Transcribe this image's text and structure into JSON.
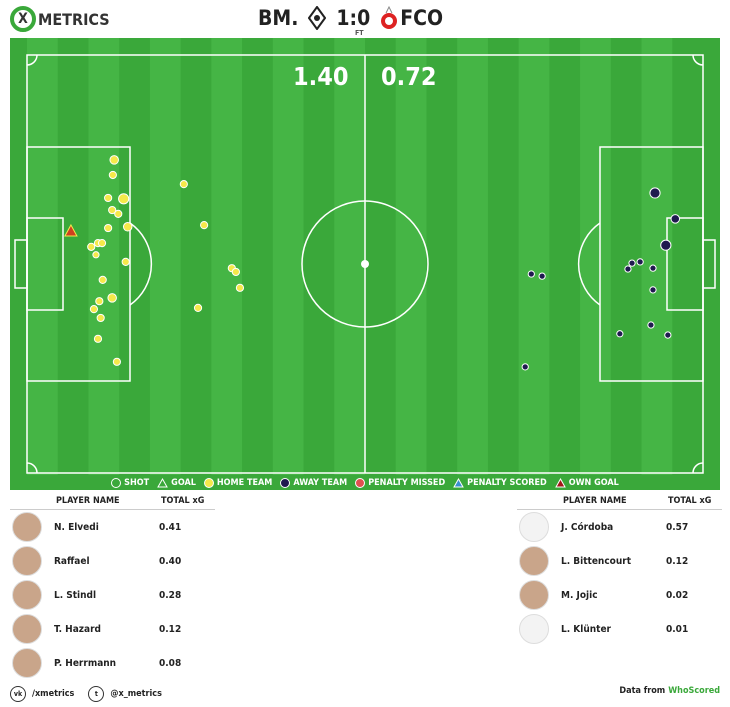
{
  "header": {
    "brand": "METRICS",
    "brand_x": "X",
    "home": "BM.",
    "away": "FCO",
    "score": "1:0",
    "status": "FT"
  },
  "xg": {
    "home": "1.40",
    "away": "0.72"
  },
  "colors": {
    "pitch": "#3aa83a",
    "pitch_stripe": "#45b545",
    "home": "#f5e94a",
    "away": "#1f1a4f",
    "own_goal": "#d04020",
    "brand": "#3aa83a"
  },
  "chart_data": {
    "type": "scatter",
    "xlim": [
      0,
      100
    ],
    "ylim": [
      0,
      100
    ],
    "home_shots": [
      [
        12.9,
        25.1,
        0.08
      ],
      [
        12.7,
        28.7,
        0.04
      ],
      [
        12.0,
        34.2,
        0.04
      ],
      [
        14.3,
        34.4,
        0.15
      ],
      [
        12.6,
        37.1,
        0.04
      ],
      [
        13.5,
        38.0,
        0.04
      ],
      [
        14.9,
        41.1,
        0.08
      ],
      [
        12.0,
        41.4,
        0.04
      ],
      [
        10.5,
        45.0,
        0.04
      ],
      [
        9.5,
        45.9,
        0.04
      ],
      [
        11.1,
        45.0,
        0.04
      ],
      [
        10.2,
        47.8,
        0.02
      ],
      [
        14.6,
        49.5,
        0.04
      ],
      [
        11.2,
        53.8,
        0.04
      ],
      [
        12.6,
        58.1,
        0.08
      ],
      [
        10.7,
        58.9,
        0.04
      ],
      [
        9.9,
        60.8,
        0.04
      ],
      [
        10.9,
        62.9,
        0.04
      ],
      [
        10.5,
        67.9,
        0.04
      ],
      [
        13.3,
        73.4,
        0.04
      ],
      [
        23.2,
        30.9,
        0.04
      ],
      [
        26.2,
        40.7,
        0.04
      ],
      [
        30.3,
        51.0,
        0.04
      ],
      [
        30.9,
        51.9,
        0.04
      ],
      [
        31.5,
        55.7,
        0.04
      ],
      [
        25.3,
        60.5,
        0.04
      ]
    ],
    "own_goal": [
      [
        6.5,
        42.1
      ]
    ],
    "away_shots": [
      [
        92.9,
        33.0,
        0.15
      ],
      [
        95.9,
        39.2,
        0.08
      ],
      [
        94.5,
        45.5,
        0.15
      ],
      [
        89.5,
        49.8,
        0.02
      ],
      [
        90.7,
        49.5,
        0.02
      ],
      [
        88.9,
        51.2,
        0.02
      ],
      [
        92.6,
        51.0,
        0.02
      ],
      [
        92.6,
        56.2,
        0.02
      ],
      [
        87.7,
        66.7,
        0.02
      ],
      [
        92.3,
        64.6,
        0.02
      ],
      [
        94.8,
        67.0,
        0.02
      ],
      [
        74.6,
        52.4,
        0.02
      ],
      [
        76.2,
        52.9,
        0.02
      ],
      [
        73.7,
        74.6,
        0.02
      ]
    ]
  },
  "legend": [
    "SHOT",
    "GOAL",
    "HOME TEAM",
    "AWAY TEAM",
    "PENALTY MISSED",
    "PENALTY SCORED",
    "OWN GOAL"
  ],
  "home_table": {
    "h1": "PLAYER NAME",
    "h2": "TOTAL xG",
    "rows": [
      {
        "name": "N. Elvedi",
        "xg": "0.41"
      },
      {
        "name": "Raffael",
        "xg": "0.40"
      },
      {
        "name": "L. Stindl",
        "xg": "0.28"
      },
      {
        "name": "T. Hazard",
        "xg": "0.12"
      },
      {
        "name": "P. Herrmann",
        "xg": "0.08"
      }
    ]
  },
  "away_table": {
    "h1": "PLAYER NAME",
    "h2": "TOTAL xG",
    "rows": [
      {
        "name": "J. Córdoba",
        "xg": "0.57"
      },
      {
        "name": "L. Bittencourt",
        "xg": "0.12"
      },
      {
        "name": "M. Jojic",
        "xg": "0.02"
      },
      {
        "name": "L. Klünter",
        "xg": "0.01"
      }
    ]
  },
  "footer": {
    "vk": "/xmetrics",
    "twitter": "@x_metrics",
    "data_from": "Data from",
    "source": "WhoScored"
  }
}
